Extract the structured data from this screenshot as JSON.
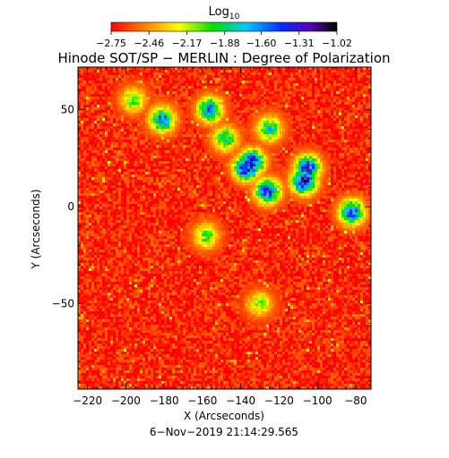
{
  "chart_data": {
    "type": "heatmap",
    "title": "Hinode SOT/SP − MERLIN : Degree of Polarization",
    "xlabel": "X (Arcseconds)",
    "ylabel": "Y (Arcseconds)",
    "xlim": [
      -225,
      -72
    ],
    "ylim": [
      -94,
      72
    ],
    "x_ticks": [
      -220,
      -200,
      -180,
      -160,
      -140,
      -120,
      -100,
      -80
    ],
    "x_tick_labels": [
      "−220",
      "−200",
      "−180",
      "−160",
      "−140",
      "−120",
      "−100",
      "−80"
    ],
    "y_ticks": [
      -50,
      0,
      50
    ],
    "y_tick_labels": [
      "−50",
      "0",
      "50"
    ],
    "colorbar": {
      "label": "Log",
      "label_subscript": "10",
      "range": [
        -2.75,
        -1.02
      ],
      "ticks": [
        -2.75,
        -2.46,
        -2.17,
        -1.88,
        -1.6,
        -1.31,
        -1.02
      ],
      "tick_labels": [
        "−2.75",
        "−2.46",
        "−2.17",
        "−1.88",
        "−1.60",
        "−1.31",
        "−1.02"
      ],
      "colormap": [
        "#ff0000",
        "#ff7a00",
        "#ffff00",
        "#00e000",
        "#00c8ff",
        "#0030ff",
        "#5a00b4",
        "#000000"
      ]
    },
    "background_level": -2.68,
    "enhanced_regions": [
      {
        "x": -137,
        "y": 20,
        "level": -1.25
      },
      {
        "x": -134,
        "y": 23,
        "level": -1.35
      },
      {
        "x": -126,
        "y": 8,
        "level": -1.45
      },
      {
        "x": -107,
        "y": 13,
        "level": -1.3
      },
      {
        "x": -105,
        "y": 20,
        "level": -1.4
      },
      {
        "x": -82,
        "y": -3,
        "level": -1.5
      },
      {
        "x": -181,
        "y": 45,
        "level": -1.6
      },
      {
        "x": -156,
        "y": 50,
        "level": -1.6
      },
      {
        "x": -125,
        "y": 40,
        "level": -1.8
      },
      {
        "x": -148,
        "y": 35,
        "level": -1.85
      },
      {
        "x": -196,
        "y": 55,
        "level": -2.0
      },
      {
        "x": -158,
        "y": -15,
        "level": -2.0
      },
      {
        "x": -130,
        "y": -50,
        "level": -2.1
      }
    ],
    "date_label": "6−Nov−2019 21:14:29.565"
  }
}
